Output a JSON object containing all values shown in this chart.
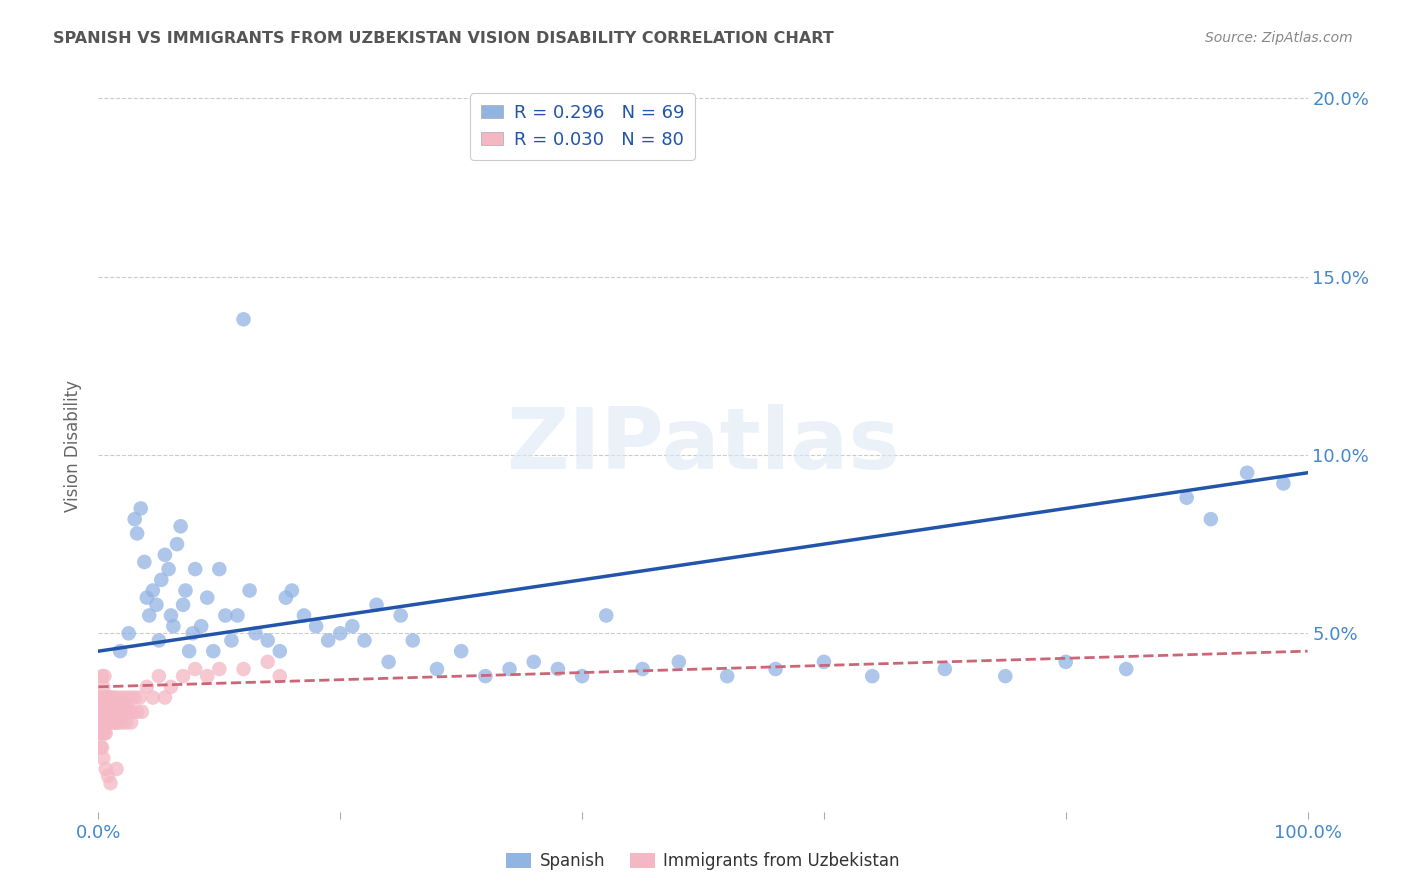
{
  "title": "SPANISH VS IMMIGRANTS FROM UZBEKISTAN VISION DISABILITY CORRELATION CHART",
  "source": "Source: ZipAtlas.com",
  "ylabel": "Vision Disability",
  "watermark": "ZIPatlas",
  "spanish_R": 0.296,
  "spanish_N": 69,
  "uzbek_R": 0.03,
  "uzbek_N": 80,
  "spanish_color": "#92b4e3",
  "uzbek_color": "#f4b8c4",
  "spanish_line_color": "#2255aa",
  "uzbek_line_color": "#cc6677",
  "legend_R_color": "#2255aa",
  "title_color": "#555555",
  "axis_label_color": "#4488cc",
  "background_color": "#ffffff",
  "grid_color": "#cccccc",
  "spanish_x": [
    0.018,
    0.025,
    0.03,
    0.032,
    0.035,
    0.038,
    0.04,
    0.042,
    0.045,
    0.048,
    0.05,
    0.052,
    0.055,
    0.058,
    0.06,
    0.062,
    0.065,
    0.068,
    0.07,
    0.072,
    0.075,
    0.078,
    0.08,
    0.085,
    0.09,
    0.095,
    0.1,
    0.105,
    0.11,
    0.115,
    0.12,
    0.125,
    0.13,
    0.14,
    0.15,
    0.155,
    0.16,
    0.17,
    0.18,
    0.19,
    0.2,
    0.21,
    0.22,
    0.23,
    0.24,
    0.25,
    0.26,
    0.28,
    0.3,
    0.32,
    0.34,
    0.36,
    0.38,
    0.4,
    0.42,
    0.45,
    0.48,
    0.52,
    0.56,
    0.6,
    0.64,
    0.7,
    0.75,
    0.8,
    0.85,
    0.9,
    0.92,
    0.95,
    0.98
  ],
  "spanish_y": [
    0.045,
    0.05,
    0.082,
    0.078,
    0.085,
    0.07,
    0.06,
    0.055,
    0.062,
    0.058,
    0.048,
    0.065,
    0.072,
    0.068,
    0.055,
    0.052,
    0.075,
    0.08,
    0.058,
    0.062,
    0.045,
    0.05,
    0.068,
    0.052,
    0.06,
    0.045,
    0.068,
    0.055,
    0.048,
    0.055,
    0.138,
    0.062,
    0.05,
    0.048,
    0.045,
    0.06,
    0.062,
    0.055,
    0.052,
    0.048,
    0.05,
    0.052,
    0.048,
    0.058,
    0.042,
    0.055,
    0.048,
    0.04,
    0.045,
    0.038,
    0.04,
    0.042,
    0.04,
    0.038,
    0.055,
    0.04,
    0.042,
    0.038,
    0.04,
    0.042,
    0.038,
    0.04,
    0.038,
    0.042,
    0.04,
    0.088,
    0.082,
    0.095,
    0.092
  ],
  "uzbek_x": [
    0.001,
    0.001,
    0.001,
    0.001,
    0.002,
    0.002,
    0.002,
    0.002,
    0.003,
    0.003,
    0.003,
    0.003,
    0.004,
    0.004,
    0.004,
    0.005,
    0.005,
    0.005,
    0.005,
    0.005,
    0.006,
    0.006,
    0.006,
    0.007,
    0.007,
    0.007,
    0.008,
    0.008,
    0.009,
    0.009,
    0.01,
    0.01,
    0.01,
    0.011,
    0.011,
    0.012,
    0.012,
    0.013,
    0.013,
    0.014,
    0.014,
    0.015,
    0.015,
    0.016,
    0.016,
    0.017,
    0.018,
    0.018,
    0.019,
    0.02,
    0.021,
    0.022,
    0.023,
    0.024,
    0.025,
    0.026,
    0.027,
    0.028,
    0.03,
    0.032,
    0.034,
    0.036,
    0.04,
    0.045,
    0.05,
    0.055,
    0.06,
    0.07,
    0.08,
    0.09,
    0.1,
    0.12,
    0.14,
    0.15,
    0.003,
    0.004,
    0.006,
    0.008,
    0.01,
    0.015
  ],
  "uzbek_y": [
    0.028,
    0.032,
    0.025,
    0.022,
    0.03,
    0.028,
    0.022,
    0.018,
    0.025,
    0.032,
    0.038,
    0.028,
    0.022,
    0.035,
    0.028,
    0.025,
    0.032,
    0.028,
    0.022,
    0.038,
    0.03,
    0.025,
    0.022,
    0.028,
    0.032,
    0.025,
    0.03,
    0.028,
    0.025,
    0.032,
    0.028,
    0.032,
    0.025,
    0.028,
    0.032,
    0.025,
    0.03,
    0.028,
    0.025,
    0.032,
    0.028,
    0.025,
    0.03,
    0.028,
    0.025,
    0.03,
    0.032,
    0.028,
    0.025,
    0.03,
    0.028,
    0.032,
    0.025,
    0.03,
    0.028,
    0.032,
    0.025,
    0.028,
    0.032,
    0.028,
    0.032,
    0.028,
    0.035,
    0.032,
    0.038,
    0.032,
    0.035,
    0.038,
    0.04,
    0.038,
    0.04,
    0.04,
    0.042,
    0.038,
    0.018,
    0.015,
    0.012,
    0.01,
    0.008,
    0.012
  ],
  "xlim": [
    0.0,
    1.0
  ],
  "ylim": [
    0.0,
    0.205
  ],
  "yticks": [
    0.05,
    0.1,
    0.15,
    0.2
  ],
  "ytick_labels": [
    "5.0%",
    "10.0%",
    "15.0%",
    "20.0%"
  ],
  "xtick_left": "0.0%",
  "xtick_right": "100.0%"
}
